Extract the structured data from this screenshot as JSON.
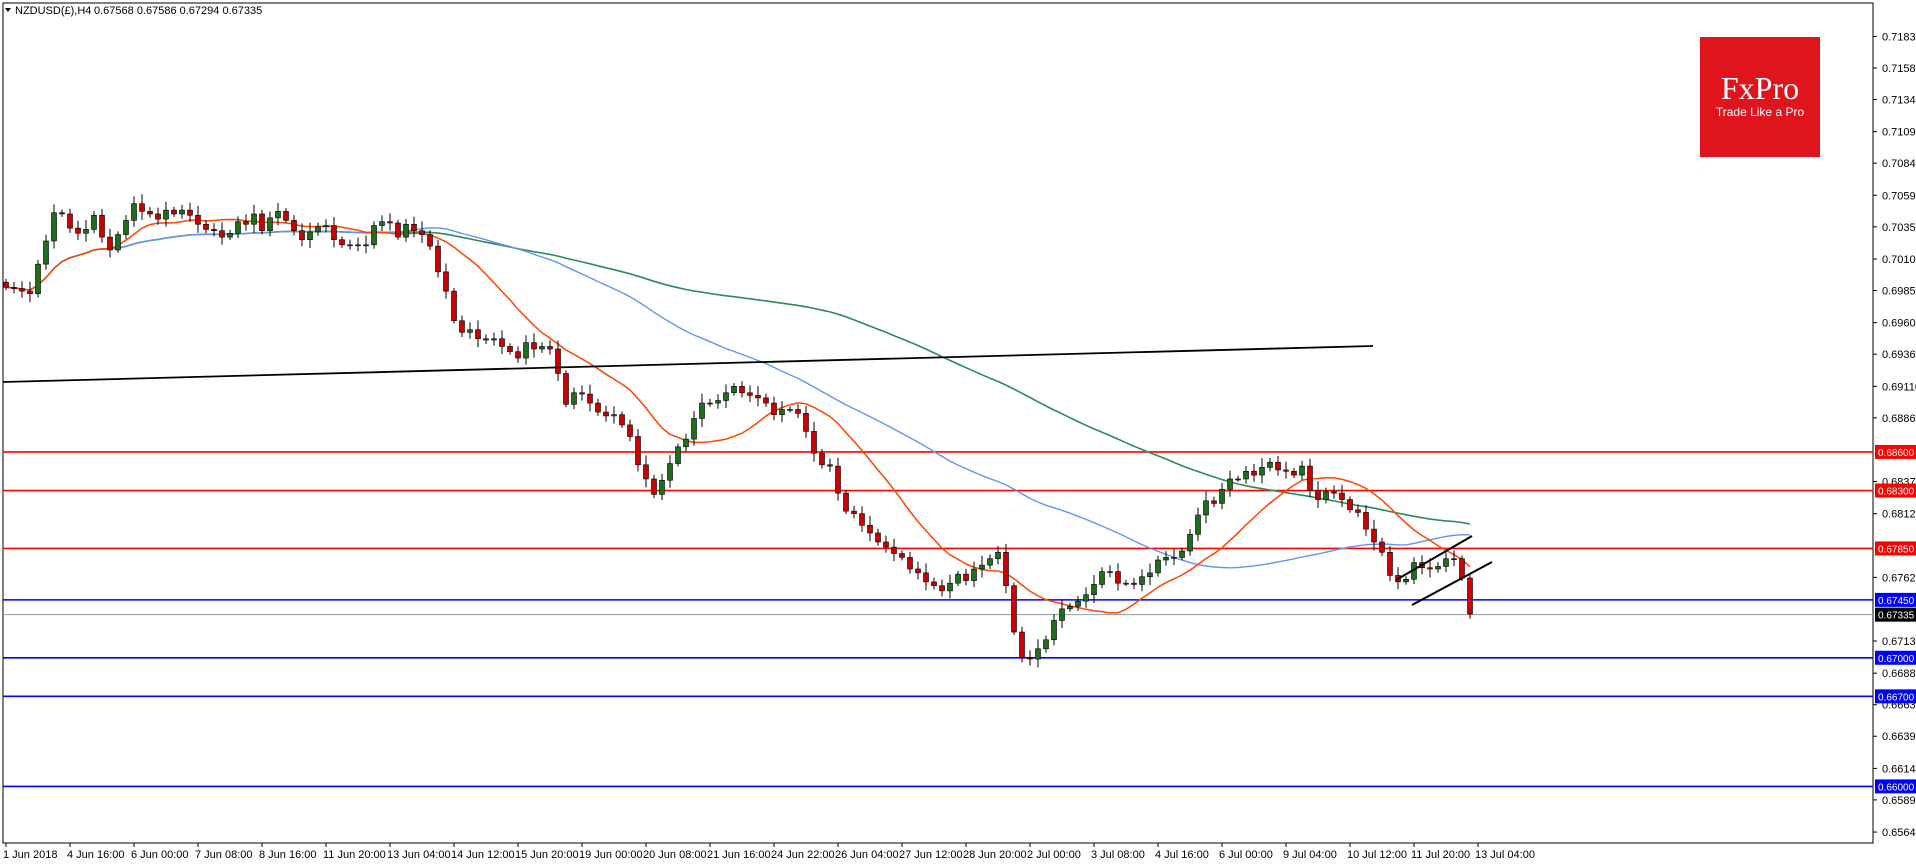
{
  "header": {
    "symbol": "NZDUSD(£),H4",
    "quote": "0.67568 0.67586 0.67294 0.67335"
  },
  "logo": {
    "brand": "FxPro",
    "tagline": "Trade Like a Pro",
    "color": "#e0141c"
  },
  "chart_data": {
    "type": "candlestick",
    "ylim": [
      0.6556,
      0.7209
    ],
    "y_ticks": [
      "0.71830",
      "0.71585",
      "0.71340",
      "0.71090",
      "0.70845",
      "0.70595",
      "0.70350",
      "0.70100",
      "0.69855",
      "0.69605",
      "0.69360",
      "0.69110",
      "0.68865",
      "0.68370",
      "0.68120",
      "0.67625",
      "0.67130",
      "0.66880",
      "0.66635",
      "0.66390",
      "0.66140",
      "0.65895",
      "0.65645"
    ],
    "x_labels": [
      {
        "i": 0,
        "label": "1 Jun 2018"
      },
      {
        "i": 8,
        "label": "4 Jun 16:00"
      },
      {
        "i": 16,
        "label": "6 Jun 00:00"
      },
      {
        "i": 24,
        "label": "7 Jun 08:00"
      },
      {
        "i": 32,
        "label": "8 Jun 16:00"
      },
      {
        "i": 40,
        "label": "11 Jun 20:00"
      },
      {
        "i": 48,
        "label": "13 Jun 04:00"
      },
      {
        "i": 56,
        "label": "14 Jun 12:00"
      },
      {
        "i": 64,
        "label": "15 Jun 20:00"
      },
      {
        "i": 72,
        "label": "19 Jun 00:00"
      },
      {
        "i": 80,
        "label": "20 Jun 08:00"
      },
      {
        "i": 88,
        "label": "21 Jun 16:00"
      },
      {
        "i": 96,
        "label": "24 Jun 22:00"
      },
      {
        "i": 104,
        "label": "26 Jun 04:00"
      },
      {
        "i": 112,
        "label": "27 Jun 12:00"
      },
      {
        "i": 120,
        "label": "28 Jun 20:00"
      },
      {
        "i": 128,
        "label": "2 Jul 00:00"
      },
      {
        "i": 136,
        "label": "3 Jul 08:00"
      },
      {
        "i": 144,
        "label": "4 Jul 16:00"
      },
      {
        "i": 152,
        "label": "6 Jul 00:00"
      },
      {
        "i": 160,
        "label": "9 Jul 04:00"
      },
      {
        "i": 168,
        "label": "10 Jul 12:00"
      },
      {
        "i": 176,
        "label": "11 Jul 20:00"
      },
      {
        "i": 184,
        "label": "13 Jul 04:00"
      }
    ],
    "closes": [
      0.6988,
      0.6987,
      0.6985,
      0.6983,
      0.7006,
      0.7024,
      0.7046,
      0.7045,
      0.7034,
      0.703,
      0.7033,
      0.7044,
      0.7027,
      0.7017,
      0.7029,
      0.704,
      0.7053,
      0.7047,
      0.7045,
      0.7041,
      0.7048,
      0.7045,
      0.7048,
      0.7044,
      0.7037,
      0.7033,
      0.7032,
      0.7027,
      0.703,
      0.7039,
      0.7037,
      0.7045,
      0.7032,
      0.7042,
      0.7047,
      0.704,
      0.7032,
      0.7025,
      0.7031,
      0.7035,
      0.7036,
      0.7025,
      0.7021,
      0.7021,
      0.7021,
      0.7021,
      0.7036,
      0.7039,
      0.7038,
      0.7027,
      0.7037,
      0.7032,
      0.7029,
      0.702,
      0.7,
      0.6985,
      0.6962,
      0.6953,
      0.6955,
      0.6948,
      0.6947,
      0.6948,
      0.6942,
      0.6938,
      0.6933,
      0.6945,
      0.694,
      0.6942,
      0.694,
      0.6921,
      0.6897,
      0.6906,
      0.6905,
      0.6898,
      0.6891,
      0.6888,
      0.6889,
      0.6881,
      0.6872,
      0.685,
      0.6839,
      0.6827,
      0.6838,
      0.6851,
      0.6864,
      0.687,
      0.6886,
      0.6898,
      0.6898,
      0.69,
      0.6906,
      0.6911,
      0.6906,
      0.6904,
      0.6902,
      0.6898,
      0.6889,
      0.6893,
      0.6893,
      0.689,
      0.6876,
      0.6859,
      0.685,
      0.6849,
      0.6828,
      0.6814,
      0.6812,
      0.6803,
      0.6797,
      0.679,
      0.6786,
      0.6781,
      0.6778,
      0.6769,
      0.6766,
      0.6759,
      0.6756,
      0.6752,
      0.6758,
      0.6765,
      0.676,
      0.6769,
      0.6772,
      0.6777,
      0.6782,
      0.6756,
      0.672,
      0.67,
      0.6699,
      0.6707,
      0.6714,
      0.6729,
      0.6738,
      0.674,
      0.6744,
      0.6749,
      0.6757,
      0.6767,
      0.6767,
      0.6758,
      0.6758,
      0.6757,
      0.6763,
      0.6766,
      0.6776,
      0.6778,
      0.6778,
      0.6783,
      0.6796,
      0.6811,
      0.6822,
      0.682,
      0.6831,
      0.6839,
      0.6839,
      0.6845,
      0.6842,
      0.6848,
      0.6852,
      0.6846,
      0.6845,
      0.6842,
      0.6849,
      0.683,
      0.6823,
      0.6829,
      0.6828,
      0.6823,
      0.6815,
      0.6813,
      0.68,
      0.679,
      0.6782,
      0.6764,
      0.6759,
      0.6761,
      0.6774,
      0.677,
      0.6769,
      0.6771,
      0.6777,
      0.6777,
      0.6762,
      0.6734
    ]
  },
  "h_levels": [
    {
      "value": 0.686,
      "label": "0.68600",
      "color": "#ff0000"
    },
    {
      "value": 0.683,
      "label": "0.68300",
      "color": "#ff0000"
    },
    {
      "value": 0.6785,
      "label": "0.67850",
      "color": "#ff0000"
    },
    {
      "value": 0.6745,
      "label": "0.67450",
      "color": "#0000ff"
    },
    {
      "value": 0.67,
      "label": "0.67000",
      "color": "#0000ff"
    },
    {
      "value": 0.667,
      "label": "0.66700",
      "color": "#0000ff"
    },
    {
      "value": 0.66,
      "label": "0.66000",
      "color": "#0000ff"
    }
  ],
  "current_price": {
    "value": 0.67335,
    "label": "0.67335"
  },
  "colors": {
    "bull": "#1e6e1e",
    "bear": "#cc0000",
    "wick": "#000000",
    "ma_fast": "#ff4500",
    "ma_mid": "#6495ed",
    "ma_slow": "#2e8b57",
    "trendline": "#000000"
  }
}
